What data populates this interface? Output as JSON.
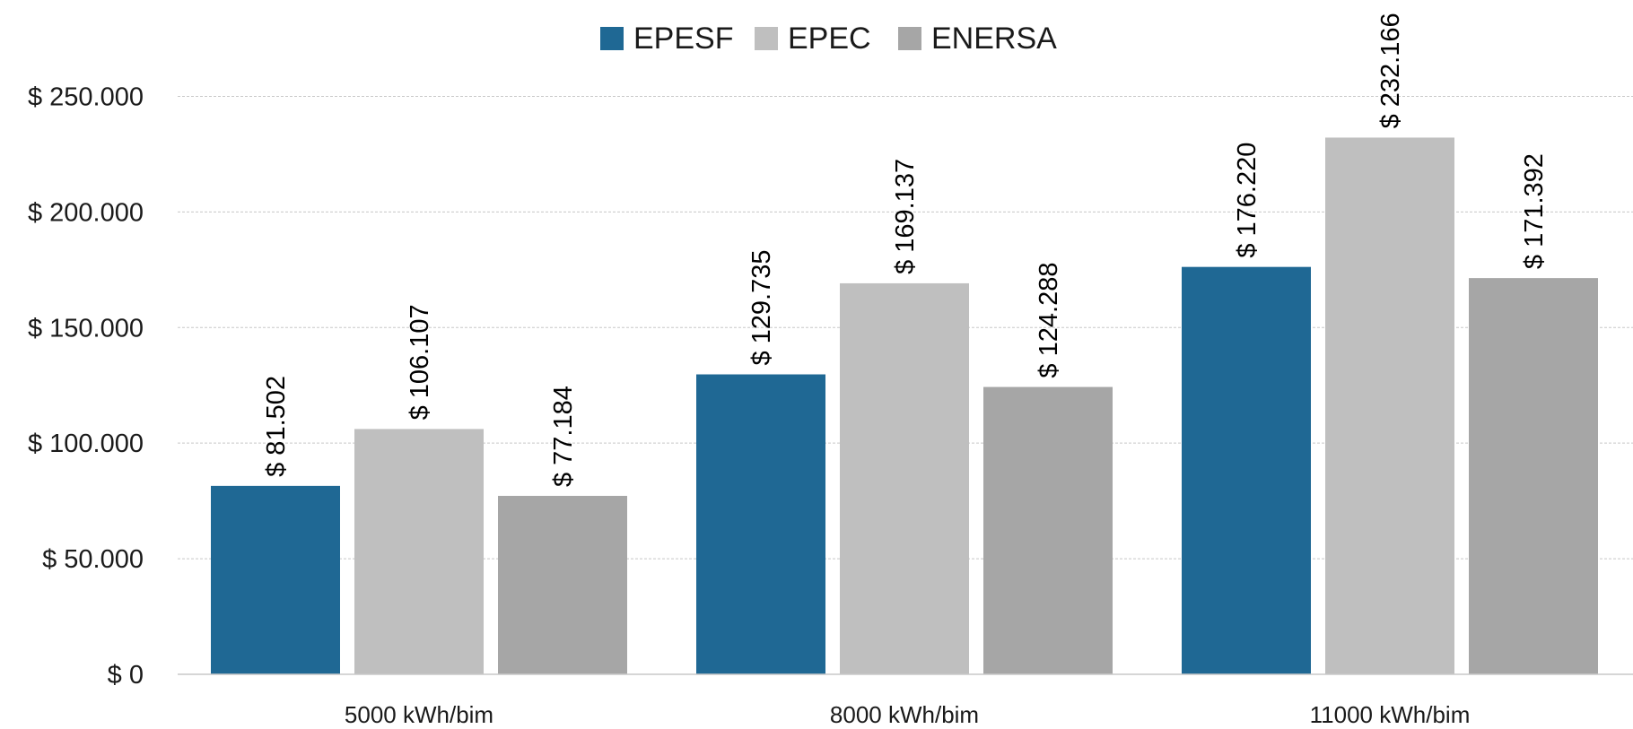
{
  "chart_data": {
    "type": "bar",
    "title": "",
    "xlabel": "",
    "ylabel": "",
    "ylim": [
      0,
      275000
    ],
    "y_ticks": [
      {
        "value": 0,
        "label": "$ 0"
      },
      {
        "value": 50000,
        "label": "$ 50.000"
      },
      {
        "value": 100000,
        "label": "$ 100.000"
      },
      {
        "value": 150000,
        "label": "$ 150.000"
      },
      {
        "value": 200000,
        "label": "$ 200.000"
      },
      {
        "value": 250000,
        "label": "$ 250.000"
      }
    ],
    "categories": [
      "5000 kWh/bim",
      "8000 kWh/bim",
      "11000 kWh/bim"
    ],
    "series": [
      {
        "name": "EPESF",
        "color": "#1f6894",
        "values": [
          81502,
          129735,
          176220
        ],
        "labels": [
          "$ 81.502",
          "$ 129.735",
          "$ 176.220"
        ]
      },
      {
        "name": "EPEC",
        "color": "#bfbfbf",
        "values": [
          106107,
          169137,
          232166
        ],
        "labels": [
          "$ 106.107",
          "$ 169.137",
          "$ 232.166"
        ]
      },
      {
        "name": "ENERSA",
        "color": "#a6a6a6",
        "values": [
          77184,
          124288,
          171392
        ],
        "labels": [
          "$ 77.184",
          "$ 124.288",
          "$ 171.392"
        ]
      }
    ],
    "grid": true,
    "legend_position": "top-center",
    "data_labels_rotated": true
  }
}
